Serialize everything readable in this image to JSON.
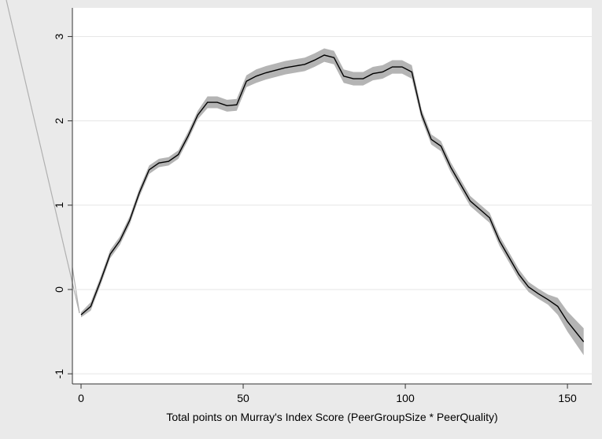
{
  "chart_data": {
    "type": "line_ci",
    "xlabel": "Total points on Murray's Index Score (PeerGroupSize * PeerQuality)",
    "x": [
      0,
      3,
      6,
      9,
      12,
      15,
      18,
      21,
      24,
      27,
      30,
      33,
      36,
      39,
      42,
      45,
      48,
      51,
      54,
      57,
      60,
      63,
      66,
      69,
      72,
      75,
      78,
      81,
      84,
      87,
      90,
      93,
      96,
      99,
      102,
      105,
      108,
      111,
      114,
      117,
      120,
      123,
      126,
      129,
      132,
      135,
      138,
      141,
      144,
      147,
      150,
      155
    ],
    "values": [
      -0.3,
      -0.2,
      0.1,
      0.42,
      0.58,
      0.82,
      1.15,
      1.42,
      1.5,
      1.52,
      1.6,
      1.82,
      2.07,
      2.22,
      2.22,
      2.18,
      2.19,
      2.47,
      2.53,
      2.57,
      2.6,
      2.63,
      2.65,
      2.67,
      2.72,
      2.78,
      2.75,
      2.53,
      2.5,
      2.5,
      2.56,
      2.58,
      2.64,
      2.64,
      2.58,
      2.08,
      1.78,
      1.7,
      1.45,
      1.25,
      1.05,
      0.95,
      0.85,
      0.58,
      0.38,
      0.18,
      0.03,
      -0.05,
      -0.12,
      -0.2,
      -0.38,
      -0.62
    ],
    "lower": [
      -0.33,
      -0.25,
      0.05,
      0.37,
      0.53,
      0.77,
      1.1,
      1.37,
      1.45,
      1.47,
      1.55,
      1.77,
      2.02,
      2.15,
      2.15,
      2.11,
      2.12,
      2.4,
      2.45,
      2.49,
      2.52,
      2.55,
      2.57,
      2.59,
      2.64,
      2.7,
      2.67,
      2.45,
      2.42,
      2.42,
      2.48,
      2.5,
      2.56,
      2.56,
      2.5,
      2.02,
      1.72,
      1.64,
      1.39,
      1.19,
      0.99,
      0.89,
      0.79,
      0.52,
      0.32,
      0.12,
      -0.03,
      -0.11,
      -0.18,
      -0.3,
      -0.5,
      -0.78
    ],
    "upper": [
      -0.27,
      -0.15,
      0.15,
      0.47,
      0.63,
      0.87,
      1.2,
      1.47,
      1.55,
      1.57,
      1.65,
      1.87,
      2.12,
      2.29,
      2.29,
      2.25,
      2.26,
      2.54,
      2.61,
      2.65,
      2.68,
      2.71,
      2.73,
      2.75,
      2.8,
      2.86,
      2.83,
      2.61,
      2.58,
      2.58,
      2.64,
      2.66,
      2.72,
      2.72,
      2.66,
      2.14,
      1.84,
      1.76,
      1.51,
      1.31,
      1.11,
      1.01,
      0.91,
      0.64,
      0.44,
      0.24,
      0.09,
      0.01,
      -0.06,
      -0.1,
      -0.26,
      -0.46
    ],
    "color": "#000000",
    "band_color": "#b4b4b4",
    "xlim": [
      -2.67,
      157.5
    ],
    "xticks": [
      0,
      50,
      100,
      150
    ],
    "ylim": [
      -1.12,
      3.34
    ],
    "yticks": [
      -1,
      0,
      1,
      2,
      3
    ],
    "grid": true
  }
}
